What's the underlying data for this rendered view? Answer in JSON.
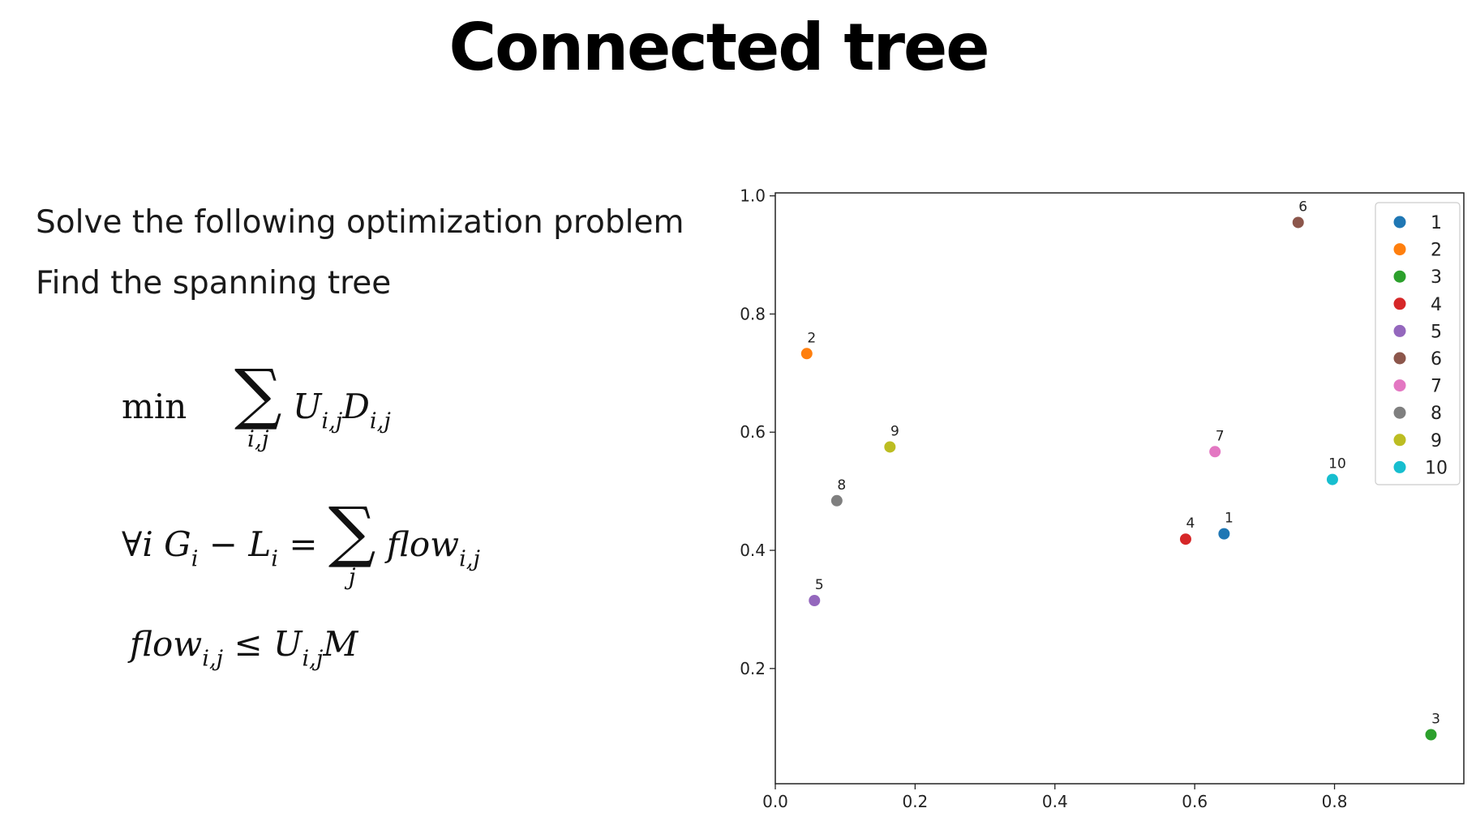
{
  "slide": {
    "title": "Connected tree",
    "bullets": [
      "Solve the following optimization problem",
      "Find the spanning tree"
    ],
    "equations": {
      "objective": {
        "min_label": "min",
        "sum_symbol": "∑",
        "sum_index": "i,j",
        "term_u": "U",
        "term_u_sub": "i,j",
        "term_d": "D",
        "term_d_sub": "i,j"
      },
      "balance": {
        "forall": "∀i",
        "g": "G",
        "g_sub": "i",
        "minus": "−",
        "l": "L",
        "l_sub": "i",
        "equals": "=",
        "sum_symbol": "∑",
        "sum_index": "j",
        "flow": "flow",
        "flow_sub": "i,j"
      },
      "capacity": {
        "flow": "flow",
        "flow_sub": "i,j",
        "leq": "≤",
        "u": "U",
        "u_sub": "i,j",
        "m": "M"
      }
    }
  },
  "chart_data": {
    "type": "scatter",
    "xlim": [
      0.0,
      0.985
    ],
    "ylim": [
      0.005,
      1.005
    ],
    "x_ticks": [
      "0.0",
      "0.2",
      "0.4",
      "0.6",
      "0.8"
    ],
    "x_tick_values": [
      0.0,
      0.2,
      0.4,
      0.6,
      0.8
    ],
    "y_ticks": [
      "0.2",
      "0.4",
      "0.6",
      "0.8",
      "1.0"
    ],
    "y_tick_values": [
      0.2,
      0.4,
      0.6,
      0.8,
      1.0
    ],
    "grid": false,
    "legend_position": "top-right",
    "series": [
      {
        "name": "1",
        "label": "1",
        "x": 0.642,
        "y": 0.428,
        "color": "#1f77b4"
      },
      {
        "name": "2",
        "label": "2",
        "x": 0.045,
        "y": 0.733,
        "color": "#ff7f0e"
      },
      {
        "name": "3",
        "label": "3",
        "x": 0.938,
        "y": 0.088,
        "color": "#2ca02c"
      },
      {
        "name": "4",
        "label": "4",
        "x": 0.587,
        "y": 0.419,
        "color": "#d62728"
      },
      {
        "name": "5",
        "label": "5",
        "x": 0.056,
        "y": 0.315,
        "color": "#9467bd"
      },
      {
        "name": "6",
        "label": "6",
        "x": 0.748,
        "y": 0.955,
        "color": "#8c564b"
      },
      {
        "name": "7",
        "label": "7",
        "x": 0.629,
        "y": 0.567,
        "color": "#e377c2"
      },
      {
        "name": "8",
        "label": "8",
        "x": 0.088,
        "y": 0.484,
        "color": "#7f7f7f"
      },
      {
        "name": "9",
        "label": "9",
        "x": 0.164,
        "y": 0.575,
        "color": "#bcbd22"
      },
      {
        "name": "10",
        "label": "10",
        "x": 0.797,
        "y": 0.52,
        "color": "#17becf"
      }
    ]
  }
}
